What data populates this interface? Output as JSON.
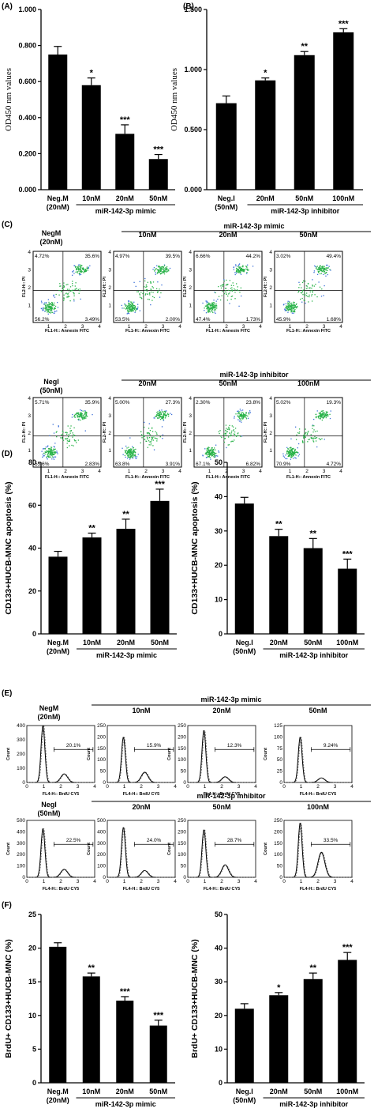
{
  "panel_labels": [
    "(A)",
    "(B)",
    "(C)",
    "(D)",
    "(E)",
    "(F)"
  ],
  "chart_data": [
    {
      "panel": "A",
      "type": "bar",
      "categories": [
        [
          "Neg.M",
          "(20nM)"
        ],
        [
          "10nM"
        ],
        [
          "20nM"
        ],
        [
          "50nM"
        ]
      ],
      "values": [
        0.75,
        0.58,
        0.31,
        0.17
      ],
      "errors": [
        0.045,
        0.04,
        0.05,
        0.025
      ],
      "significance": [
        "",
        "*",
        "***",
        "***"
      ],
      "ylabel": "OD450 nm values",
      "ylim": [
        0,
        1.0
      ],
      "yticks": [
        "0.000",
        "0.200",
        "0.400",
        "0.600",
        "0.800",
        "1.000"
      ],
      "group_label": "miR-142-3p mimic"
    },
    {
      "panel": "B",
      "type": "bar",
      "categories": [
        [
          "Neg.I",
          "(50nM)"
        ],
        [
          "20nM"
        ],
        [
          "50nM"
        ],
        [
          "100nM"
        ]
      ],
      "values": [
        0.72,
        0.91,
        1.12,
        1.31
      ],
      "errors": [
        0.06,
        0.02,
        0.03,
        0.03
      ],
      "significance": [
        "",
        "*",
        "**",
        "***"
      ],
      "ylabel": "OD450 nm values",
      "ylim": [
        0,
        1.5
      ],
      "yticks": [
        "0.000",
        "0.500",
        "1.000",
        "1.500"
      ],
      "group_label": "miR-142-3p inhibitor"
    },
    {
      "panel": "D1",
      "type": "bar",
      "categories": [
        [
          "Neg.M",
          "(20nM)"
        ],
        [
          "10nM"
        ],
        [
          "20nM"
        ],
        [
          "50nM"
        ]
      ],
      "values": [
        36,
        45,
        49,
        62
      ],
      "errors": [
        2.5,
        2,
        4.5,
        5.5
      ],
      "significance": [
        "",
        "**",
        "**",
        "***"
      ],
      "ylabel": "CD133+HUCB-MNC apoptosis (%)",
      "ylim": [
        0,
        80
      ],
      "yticks": [
        "0",
        "20",
        "40",
        "60",
        "80"
      ],
      "group_label": "miR-142-3p mimic"
    },
    {
      "panel": "D2",
      "type": "bar",
      "categories": [
        [
          "Neg.I",
          "(50nM)"
        ],
        [
          "20nM"
        ],
        [
          "50nM"
        ],
        [
          "100nM"
        ]
      ],
      "values": [
        38,
        28.5,
        25,
        19
      ],
      "errors": [
        1.8,
        2,
        2.8,
        2.8
      ],
      "significance": [
        "",
        "**",
        "**",
        "***"
      ],
      "ylabel": "CD133+HUCB-MNC apoptosis (%)",
      "ylim": [
        0,
        50
      ],
      "yticks": [
        "0",
        "10",
        "20",
        "30",
        "40",
        "50"
      ],
      "group_label": "miR-142-3p inhibitor"
    },
    {
      "panel": "F1",
      "type": "bar",
      "categories": [
        [
          "Neg.M",
          "(20nM)"
        ],
        [
          "10nM"
        ],
        [
          "20nM"
        ],
        [
          "50nM"
        ]
      ],
      "values": [
        20.2,
        15.8,
        12.2,
        8.5
      ],
      "errors": [
        0.6,
        0.5,
        0.6,
        0.8
      ],
      "significance": [
        "",
        "**",
        "***",
        "***"
      ],
      "ylabel": "BrdU+ CD133+HUCB-MNC (%)",
      "ylim": [
        0,
        25
      ],
      "yticks": [
        "0",
        "5",
        "10",
        "15",
        "20",
        "25"
      ],
      "group_label": "miR-142-3p mimic"
    },
    {
      "panel": "F2",
      "type": "bar",
      "categories": [
        [
          "Neg.I",
          "(50nM)"
        ],
        [
          "20nM"
        ],
        [
          "50nM"
        ],
        [
          "100nM"
        ]
      ],
      "values": [
        22,
        26,
        30.8,
        36.5
      ],
      "errors": [
        1.5,
        0.8,
        1.8,
        2.2
      ],
      "significance": [
        "",
        "*",
        "**",
        "***"
      ],
      "ylabel": "BrdU+ CD133+HUCB-MNC (%)",
      "ylim": [
        0,
        50
      ],
      "yticks": [
        "0",
        "10",
        "20",
        "30",
        "40",
        "50"
      ],
      "group_label": "miR-142-3p inhibitor"
    }
  ],
  "flow_plots": {
    "x_axis_label": "FL1-H:: Annexin FITC",
    "y_axis_label": "FL2-H:: PI",
    "decade_ticks": [
      "1",
      "2",
      "3",
      "4"
    ],
    "rows": [
      {
        "group_label": "miR-142-3p mimic",
        "plots": [
          {
            "header": [
              "NegM",
              "(20nM)"
            ],
            "q": [
              "4.72%",
              "35.6%",
              "56.2%",
              "3.49%"
            ]
          },
          {
            "header": [
              "10nM"
            ],
            "q": [
              "4.97%",
              "39.5%",
              "53.5%",
              "2.00%"
            ]
          },
          {
            "header": [
              "20nM"
            ],
            "q": [
              "6.66%",
              "44.2%",
              "47.4%",
              "1.73%"
            ]
          },
          {
            "header": [
              "50nM"
            ],
            "q": [
              "3.02%",
              "49.4%",
              "45.9%",
              "1.68%"
            ]
          }
        ]
      },
      {
        "group_label": "miR-142-3p inhibitor",
        "plots": [
          {
            "header": [
              "NegI",
              "(50nM)"
            ],
            "q": [
              "5.71%",
              "35.9%",
              "55.6%",
              "2.83%"
            ]
          },
          {
            "header": [
              "20nM"
            ],
            "q": [
              "5.00%",
              "27.3%",
              "63.8%",
              "3.91%"
            ]
          },
          {
            "header": [
              "50nM"
            ],
            "q": [
              "2.30%",
              "23.8%",
              "67.1%",
              "6.82%"
            ]
          },
          {
            "header": [
              "100nM"
            ],
            "q": [
              "5.02%",
              "19.3%",
              "70.9%",
              "4.72%"
            ]
          }
        ]
      }
    ]
  },
  "histograms": {
    "x_axis_label": "FL4-H:: BrdU CY5",
    "y_axis_label": "Count",
    "decade_ticks": [
      "0",
      "1",
      "2",
      "3",
      "4"
    ],
    "rows": [
      {
        "group_label": "miR-142-3p mimic",
        "plots": [
          {
            "header": [
              "NegM",
              "(20nM)"
            ],
            "pct": "20.1%",
            "ymax": 400,
            "yticks": [
              "0",
              "100",
              "200",
              "300",
              "400"
            ],
            "peak1": 400,
            "peak2": 60
          },
          {
            "header": [
              "10nM"
            ],
            "pct": "15.9%",
            "ymax": 250,
            "yticks": [
              "0",
              "50",
              "100",
              "150",
              "200",
              "250"
            ],
            "peak1": 200,
            "peak2": 45
          },
          {
            "header": [
              "20nM"
            ],
            "pct": "12.3%",
            "ymax": 250,
            "yticks": [
              "0",
              "50",
              "100",
              "150",
              "200",
              "250"
            ],
            "peak1": 230,
            "peak2": 25
          },
          {
            "header": [
              "50nM"
            ],
            "pct": "9.24%",
            "ymax": 125,
            "yticks": [
              "0",
              "25",
              "50",
              "75",
              "100",
              "125"
            ],
            "peak1": 100,
            "peak2": 10
          }
        ]
      },
      {
        "group_label": "miR-142-3p inhibitor",
        "plots": [
          {
            "header": [
              "NegI",
              "(50nM)"
            ],
            "pct": "22.5%",
            "ymax": 500,
            "yticks": [
              "0",
              "100",
              "200",
              "300",
              "400",
              "500"
            ],
            "peak1": 430,
            "peak2": 70
          },
          {
            "header": [
              "20nM"
            ],
            "pct": "24.0%",
            "ymax": 500,
            "yticks": [
              "0",
              "100",
              "200",
              "300",
              "400",
              "500"
            ],
            "peak1": 440,
            "peak2": 60
          },
          {
            "header": [
              "50nM"
            ],
            "pct": "28.7%",
            "ymax": 250,
            "yticks": [
              "0",
              "50",
              "100",
              "150",
              "200",
              "250"
            ],
            "peak1": 210,
            "peak2": 55
          },
          {
            "header": [
              "100nM"
            ],
            "pct": "33.5%",
            "ymax": 250,
            "yticks": [
              "0",
              "50",
              "100",
              "150",
              "200",
              "250"
            ],
            "peak1": 240,
            "peak2": 110
          }
        ]
      }
    ]
  }
}
